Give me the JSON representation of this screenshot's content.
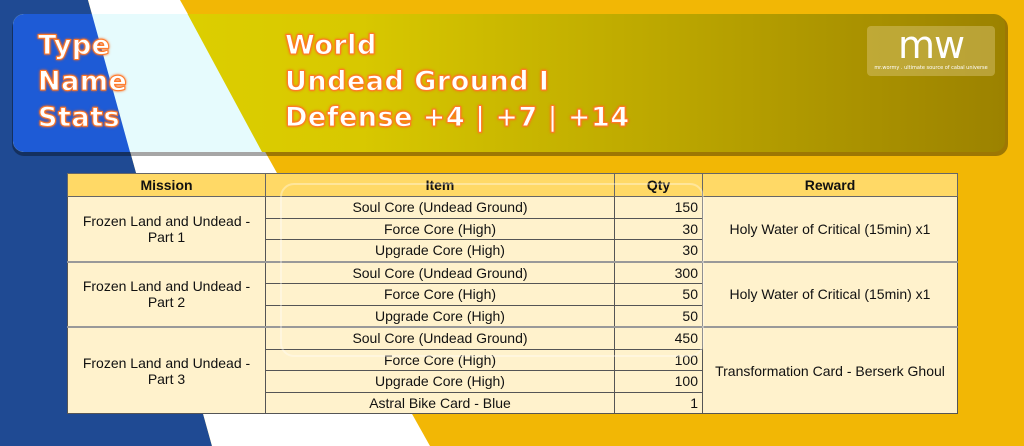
{
  "header": {
    "labels": [
      "Type",
      "Name",
      "Stats"
    ],
    "type": "World",
    "name": "Undead Ground I",
    "stats": "Defense +4 | +7 | +14"
  },
  "logo": {
    "mark": "mw",
    "tagline": "mr.wormy . ultimate source of cabal universe"
  },
  "colors": {
    "blue": "#1f4a93",
    "yellow": "#f2b705",
    "header_row": "#ffd966",
    "cell": "#fff2cc",
    "title_outline": "#ff7a2a"
  },
  "table": {
    "columns": [
      "Mission",
      "Item",
      "Qty",
      "Reward"
    ],
    "groups": [
      {
        "mission": "Frozen Land and Undead - Part 1",
        "reward": "Holy Water of Critical (15min) x1",
        "items": [
          {
            "item": "Soul Core (Undead Ground)",
            "qty": "150"
          },
          {
            "item": "Force Core (High)",
            "qty": "30"
          },
          {
            "item": "Upgrade Core (High)",
            "qty": "30"
          }
        ]
      },
      {
        "mission": "Frozen Land and Undead - Part 2",
        "reward": "Holy Water of Critical (15min) x1",
        "items": [
          {
            "item": "Soul Core (Undead Ground)",
            "qty": "300"
          },
          {
            "item": "Force Core (High)",
            "qty": "50"
          },
          {
            "item": "Upgrade Core (High)",
            "qty": "50"
          }
        ]
      },
      {
        "mission": "Frozen Land and Undead - Part 3",
        "reward": "Transformation Card - Berserk Ghoul",
        "items": [
          {
            "item": "Soul Core (Undead Ground)",
            "qty": "450"
          },
          {
            "item": "Force Core (High)",
            "qty": "100"
          },
          {
            "item": "Upgrade Core (High)",
            "qty": "100"
          },
          {
            "item": "Astral Bike Card - Blue",
            "qty": "1"
          }
        ]
      }
    ]
  }
}
